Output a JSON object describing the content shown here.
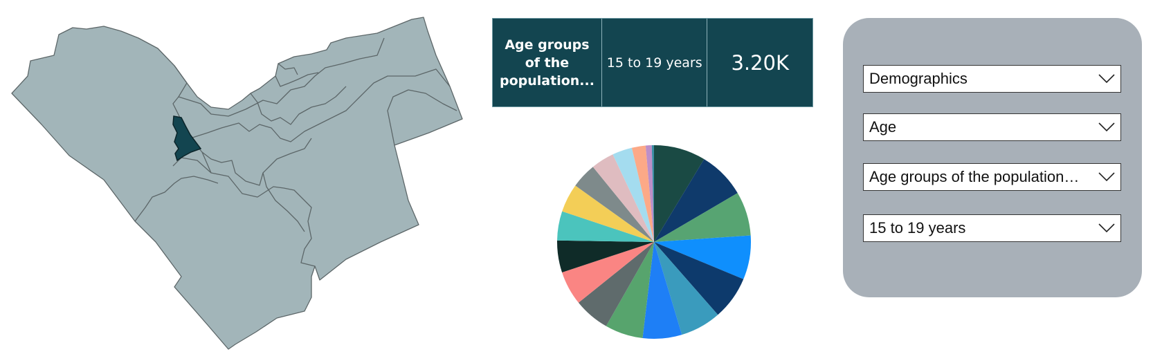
{
  "cards": {
    "label": "Age groups of the population...",
    "category": "15 to 19 years",
    "value": "3.20K"
  },
  "pie": {
    "colors": [
      "#1a4a44",
      "#0f3a6b",
      "#57a472",
      "#0f8ffd",
      "#0d3a6c",
      "#3a9bbd",
      "#1e7ff6",
      "#57a46d",
      "#5f6b6c",
      "#fa8583",
      "#0f2b28",
      "#4bc4bd",
      "#f3ce57",
      "#7e8a8b",
      "#dfbcc0",
      "#a4dcef",
      "#fca987",
      "#bd8fc8",
      "#3b8ea4"
    ],
    "values": [
      9.4,
      8.6,
      8.0,
      8.0,
      7.9,
      7.4,
      7.1,
      6.9,
      6.5,
      6.2,
      5.8,
      5.3,
      5.2,
      4.6,
      4.2,
      3.6,
      2.5,
      1.1,
      0.4
    ]
  },
  "map": {
    "fill": "#a2b5b9",
    "highlight": "#134550"
  },
  "filters": [
    {
      "value": "Demographics"
    },
    {
      "value": "Age"
    },
    {
      "value": "Age groups of the population…"
    },
    {
      "value": "15 to 19 years"
    }
  ]
}
